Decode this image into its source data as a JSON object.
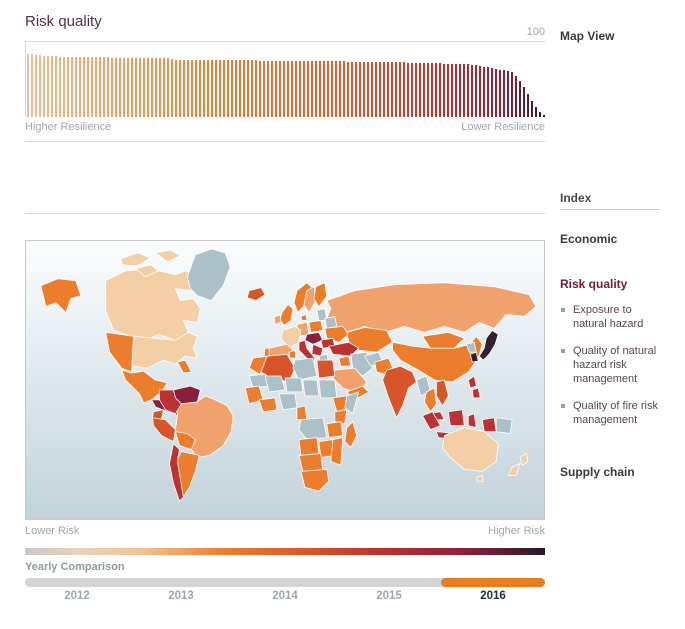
{
  "page": {
    "title": "Risk quality"
  },
  "chart_data": [
    {
      "type": "bar",
      "title": "Risk quality — country resilience ranking (130 countries, ranked best to worst)",
      "ylim": [
        0,
        100
      ],
      "top_tick_label": "100",
      "axis_left_label": "Higher Resilience",
      "axis_right_label": "Lower Resilience",
      "grid": "single top gridline at 100",
      "legend_position": "none",
      "values": [
        84,
        83.4,
        82.8,
        82.3,
        81.9,
        81.5,
        81.2,
        80.9,
        80.7,
        80.5,
        80.3,
        80.2,
        80.1,
        80,
        79.9,
        79.8,
        79.7,
        79.6,
        79.6,
        79.5,
        79.4,
        79.3,
        79.2,
        79.1,
        79,
        78.9,
        78.9,
        78.8,
        78.7,
        78.6,
        78.5,
        78.5,
        78.4,
        78.3,
        78.2,
        78.2,
        76.8,
        76.7,
        76.7,
        76.6,
        76.5,
        76.5,
        76.4,
        76.3,
        76.3,
        76.2,
        76.1,
        76.1,
        76,
        75.9,
        75.9,
        75.8,
        75.8,
        75.7,
        75.6,
        75.6,
        75.5,
        75.5,
        75.4,
        75.4,
        75.3,
        75.2,
        75.1,
        75.1,
        75,
        74.9,
        74.9,
        74.8,
        74.8,
        74.7,
        74.6,
        74.6,
        74.5,
        74.5,
        74.4,
        74.3,
        74.3,
        74.2,
        74.2,
        74.1,
        74,
        74,
        73.9,
        73.9,
        73.8,
        73.7,
        73.7,
        73.6,
        73.6,
        73.5,
        73.5,
        73.3,
        73.1,
        73,
        72.8,
        72.7,
        72.5,
        72.4,
        72.2,
        72.1,
        71.9,
        71.8,
        71.6,
        71.5,
        71.3,
        71.2,
        71,
        70.9,
        70.7,
        70.6,
        70.5,
        69.8,
        68.9,
        68,
        67.1,
        66.2,
        65.3,
        64.4,
        63.4,
        62.4,
        61.3,
        60.2,
        55,
        48,
        40,
        31,
        22,
        14,
        7,
        2.5
      ],
      "bar_color_stops": [
        {
          "t": 0,
          "c": "#efbf93"
        },
        {
          "t": 0.35,
          "c": "#e2863b"
        },
        {
          "t": 0.6,
          "c": "#d96230"
        },
        {
          "t": 0.8,
          "c": "#b8352f"
        },
        {
          "t": 0.92,
          "c": "#8c2138"
        },
        {
          "t": 1,
          "c": "#2f1d2c"
        }
      ]
    },
    {
      "type": "heatmap",
      "variant": "world-choropleth",
      "title": "Risk quality by country, 2016",
      "legend_left_label": "Lower Risk",
      "legend_right_label": "Higher Risk",
      "ocean_gradient": [
        "#fbfdfe",
        "#c2d3da"
      ],
      "palette": {
        "nodata": "#abc0c8",
        "level1": "#f4cfa6",
        "level2": "#f1a26c",
        "level3": "#eb7d2d",
        "level4": "#d8552a",
        "level5": "#bb3231",
        "level6": "#8c1e3c",
        "level7": "#322030"
      },
      "legend_gradient_stops": [
        {
          "t": 0,
          "c": "#c8c8c8"
        },
        {
          "t": 0.1,
          "c": "#e6d4bd"
        },
        {
          "t": 0.22,
          "c": "#f0c497"
        },
        {
          "t": 0.38,
          "c": "#ec7f2f"
        },
        {
          "t": 0.55,
          "c": "#d8552a"
        },
        {
          "t": 0.68,
          "c": "#bb3231"
        },
        {
          "t": 0.85,
          "c": "#8c1e3c"
        },
        {
          "t": 1,
          "c": "#241a26"
        }
      ],
      "regions": {
        "alaska": "level3",
        "canada": "level1",
        "canada-islands-1": "level1",
        "canada-islands-2": "level1",
        "canada-islands-3": "level1",
        "greenland": "nodata",
        "iceland": "level4",
        "usa-west": "level3",
        "usa-east": "level1",
        "florida": "level3",
        "mexico": "level3",
        "central-america": "level6",
        "cuba": "level5",
        "hispaniola": "level7",
        "lesser-antilles": "level5",
        "venezuela": "level6",
        "colombia": "level5",
        "ecuador": "level4",
        "peru": "level4",
        "brazil": "level2",
        "bolivia": "level3",
        "chile": "level5",
        "argentina": "level3",
        "uk": "level3",
        "ireland": "level2",
        "norway": "level3",
        "sweden": "level2",
        "finland": "level3",
        "denmark": "level3",
        "germany": "level2",
        "france": "level1",
        "spain": "level2",
        "portugal": "level3",
        "poland": "level3",
        "baltics": "nodata",
        "belarus": "nodata",
        "ukraine": "level3",
        "central-europe": "level6",
        "romania": "level5",
        "balkans": "level5",
        "italy": "level5",
        "greece": "nodata",
        "russia": "level2",
        "kazakhstan": "level3",
        "mongolia": "level3",
        "china": "level3",
        "north-korea": "nodata",
        "south-korea": "level7",
        "japan": "level7",
        "india": "level4",
        "pakistan": "level3",
        "afghanistan": "nodata",
        "iran": "nodata",
        "turkey": "level5",
        "iraq": "level3",
        "saudi-arabia": "level2",
        "yemen-oman": "level3",
        "myanmar": "nodata",
        "thailand": "level3",
        "vietnam": "level4",
        "malaysia": "level5",
        "philippines-1": "level5",
        "philippines-2": "level5",
        "sumatra": "level5",
        "java": "level5",
        "borneo": "level5",
        "sulawesi": "level5",
        "west-papua": "level5",
        "papua-new-guinea": "nodata",
        "morocco": "level3",
        "algeria": "level4",
        "tunisia": "level3",
        "libya": "nodata",
        "egypt": "level4",
        "mauritania": "nodata",
        "mali": "nodata",
        "niger": "nodata",
        "chad": "nodata",
        "sudan": "nodata",
        "west-africa": "level3",
        "ivory-ghana": "level3",
        "nigeria": "nodata",
        "cameroon": "level3",
        "ethiopia": "level3",
        "somalia": "nodata",
        "kenya": "level3",
        "drc": "nodata",
        "tanzania": "level3",
        "angola": "level3",
        "zambia": "level3",
        "mozambique": "level3",
        "namibia-botswana": "level3",
        "south-africa": "level3",
        "madagascar": "level3",
        "australia": "level1",
        "tasmania": "level1",
        "new-zealand-north": "level1",
        "new-zealand-south": "level1"
      }
    }
  ],
  "timeline": {
    "label": "Yearly Comparison",
    "years": [
      "2012",
      "2013",
      "2014",
      "2015",
      "2016"
    ],
    "selected_year": "2016",
    "active_color": "#e87c1e"
  },
  "sidebar": {
    "map_view_label": "Map View",
    "index_label": "Index",
    "economic_label": "Economic",
    "risk_quality_label": "Risk quality",
    "risk_items": [
      "Exposure to natural hazard",
      "Quality of natural hazard risk management",
      "Quality of fire risk management"
    ],
    "supply_chain_label": "Supply chain"
  }
}
